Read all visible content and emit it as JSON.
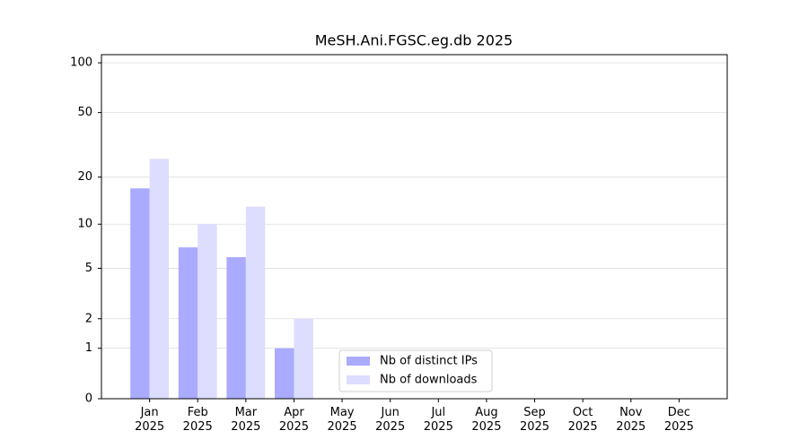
{
  "chart_data": {
    "type": "bar",
    "title": "MeSH.Ani.FGSC.eg.db 2025",
    "categories": [
      "Jan\n2025",
      "Feb\n2025",
      "Mar\n2025",
      "Apr\n2025",
      "May\n2025",
      "Jun\n2025",
      "Jul\n2025",
      "Aug\n2025",
      "Sep\n2025",
      "Oct\n2025",
      "Nov\n2025",
      "Dec\n2025"
    ],
    "series": [
      {
        "name": "Nb of distinct IPs",
        "color": "#aaaaff",
        "values": [
          17,
          7,
          6,
          1,
          0,
          0,
          0,
          0,
          0,
          0,
          0,
          0
        ]
      },
      {
        "name": "Nb of downloads",
        "color": "#ddddff",
        "values": [
          26,
          10,
          13,
          2,
          0,
          0,
          0,
          0,
          0,
          0,
          0,
          0
        ]
      }
    ],
    "yscale": "log1p",
    "ylim": [
      0,
      112
    ],
    "yticks": [
      0,
      1,
      2,
      5,
      10,
      20,
      50,
      100
    ],
    "grid": true,
    "legend": "lower center"
  }
}
